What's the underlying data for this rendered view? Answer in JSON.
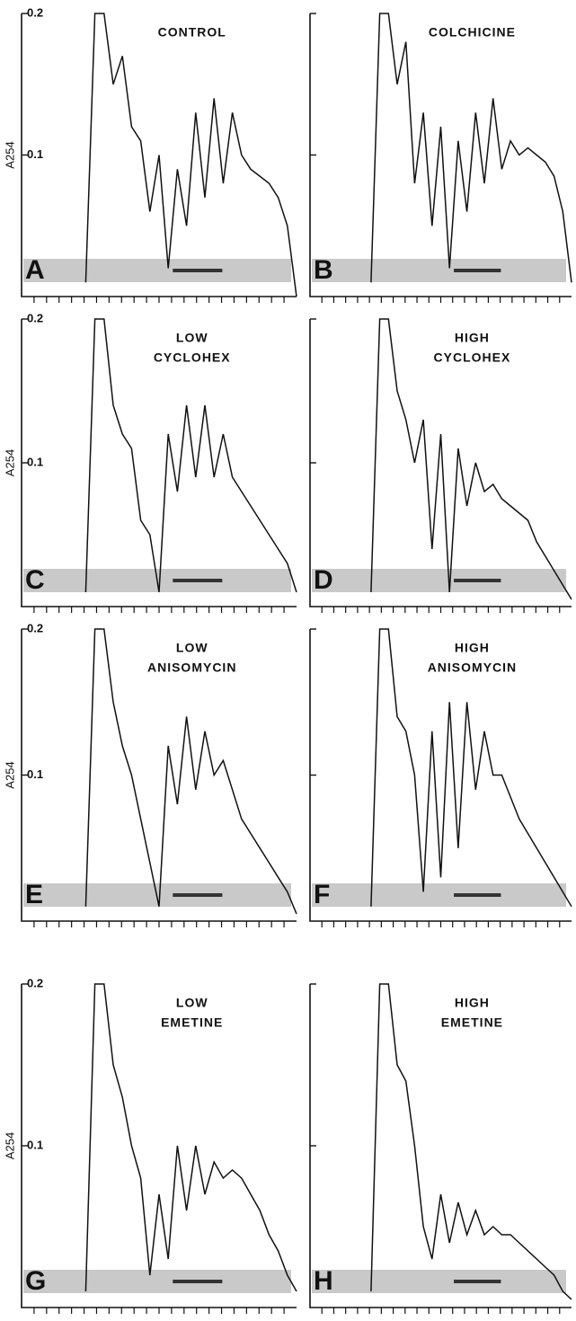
{
  "chart_data": [
    {
      "type": "line",
      "panel": "A",
      "title": [
        "CONTROL"
      ],
      "ylabel": "A254",
      "tick_labels": true,
      "color": "#111111",
      "xlim": [
        0,
        30
      ],
      "ylim": [
        0,
        0.2
      ],
      "yticks": [
        0.1,
        0.2
      ],
      "x": [
        7,
        8,
        9,
        10,
        11,
        12,
        13,
        14,
        15,
        16,
        17,
        18,
        19,
        20,
        21,
        22,
        23,
        24,
        25,
        26,
        27,
        28,
        29,
        30
      ],
      "values": [
        0.01,
        0.2,
        0.2,
        0.15,
        0.17,
        0.12,
        0.11,
        0.06,
        0.1,
        0.02,
        0.09,
        0.05,
        0.13,
        0.07,
        0.14,
        0.08,
        0.13,
        0.1,
        0.09,
        0.085,
        0.08,
        0.07,
        0.05,
        0.0
      ]
    },
    {
      "type": "line",
      "panel": "B",
      "title": [
        "COLCHICINE"
      ],
      "tick_labels": false,
      "color": "#111111",
      "xlim": [
        0,
        30
      ],
      "ylim": [
        0,
        0.2
      ],
      "yticks": [
        0.1,
        0.2
      ],
      "x": [
        7,
        8,
        9,
        10,
        11,
        12,
        13,
        14,
        15,
        16,
        17,
        18,
        19,
        20,
        21,
        22,
        23,
        24,
        25,
        26,
        27,
        28,
        29,
        30
      ],
      "values": [
        0.01,
        0.2,
        0.2,
        0.15,
        0.18,
        0.08,
        0.13,
        0.05,
        0.12,
        0.02,
        0.11,
        0.06,
        0.13,
        0.08,
        0.14,
        0.09,
        0.11,
        0.1,
        0.105,
        0.1,
        0.095,
        0.085,
        0.06,
        0.01
      ]
    },
    {
      "type": "line",
      "panel": "C",
      "title": [
        "LOW",
        "CYCLOHEX"
      ],
      "ylabel": "A254",
      "tick_labels": true,
      "color": "#111111",
      "xlim": [
        0,
        30
      ],
      "ylim": [
        0,
        0.2
      ],
      "yticks": [
        0.1,
        0.2
      ],
      "x": [
        7,
        8,
        9,
        10,
        11,
        12,
        13,
        14,
        15,
        16,
        17,
        18,
        19,
        20,
        21,
        22,
        23,
        24,
        25,
        26,
        27,
        28,
        29,
        30
      ],
      "values": [
        0.01,
        0.2,
        0.2,
        0.14,
        0.12,
        0.11,
        0.06,
        0.05,
        0.01,
        0.12,
        0.08,
        0.14,
        0.09,
        0.14,
        0.09,
        0.12,
        0.09,
        0.08,
        0.07,
        0.06,
        0.05,
        0.04,
        0.03,
        0.01
      ]
    },
    {
      "type": "line",
      "panel": "D",
      "title": [
        "HIGH",
        "CYCLOHEX"
      ],
      "tick_labels": false,
      "color": "#111111",
      "xlim": [
        0,
        30
      ],
      "ylim": [
        0,
        0.2
      ],
      "yticks": [
        0.1,
        0.2
      ],
      "x": [
        7,
        8,
        9,
        10,
        11,
        12,
        13,
        14,
        15,
        16,
        17,
        18,
        19,
        20,
        21,
        22,
        23,
        24,
        25,
        26,
        27,
        28,
        29,
        30
      ],
      "values": [
        0.01,
        0.2,
        0.2,
        0.15,
        0.13,
        0.1,
        0.13,
        0.04,
        0.12,
        0.01,
        0.11,
        0.07,
        0.1,
        0.08,
        0.085,
        0.075,
        0.07,
        0.065,
        0.06,
        0.045,
        0.035,
        0.025,
        0.015,
        0.005
      ]
    },
    {
      "type": "line",
      "panel": "E",
      "title": [
        "LOW",
        "ANISOMYCIN"
      ],
      "ylabel": "A254",
      "tick_labels": true,
      "color": "#111111",
      "xlim": [
        0,
        30
      ],
      "ylim": [
        0,
        0.2
      ],
      "yticks": [
        0.1,
        0.2
      ],
      "x": [
        7,
        8,
        9,
        10,
        11,
        12,
        13,
        14,
        15,
        16,
        17,
        18,
        19,
        20,
        21,
        22,
        23,
        24,
        25,
        26,
        27,
        28,
        29,
        30
      ],
      "values": [
        0.01,
        0.2,
        0.2,
        0.15,
        0.12,
        0.1,
        0.07,
        0.04,
        0.01,
        0.12,
        0.08,
        0.14,
        0.09,
        0.13,
        0.1,
        0.11,
        0.09,
        0.07,
        0.06,
        0.05,
        0.04,
        0.03,
        0.02,
        0.005
      ]
    },
    {
      "type": "line",
      "panel": "F",
      "title": [
        "HIGH",
        "ANISOMYCIN"
      ],
      "tick_labels": false,
      "color": "#111111",
      "xlim": [
        0,
        30
      ],
      "ylim": [
        0,
        0.2
      ],
      "yticks": [
        0.1,
        0.2
      ],
      "x": [
        7,
        8,
        9,
        10,
        11,
        12,
        13,
        14,
        15,
        16,
        17,
        18,
        19,
        20,
        21,
        22,
        23,
        24,
        25,
        26,
        27,
        28,
        29,
        30
      ],
      "values": [
        0.01,
        0.2,
        0.2,
        0.14,
        0.13,
        0.1,
        0.02,
        0.13,
        0.03,
        0.15,
        0.05,
        0.15,
        0.09,
        0.13,
        0.1,
        0.1,
        0.085,
        0.07,
        0.06,
        0.05,
        0.04,
        0.03,
        0.02,
        0.01
      ]
    },
    {
      "type": "line",
      "panel": "G",
      "title": [
        "LOW",
        "EMETINE"
      ],
      "ylabel": "A254",
      "tick_labels": true,
      "color": "#111111",
      "xlim": [
        0,
        30
      ],
      "ylim": [
        0,
        0.2
      ],
      "yticks": [
        0.1,
        0.2
      ],
      "x": [
        7,
        8,
        9,
        10,
        11,
        12,
        13,
        14,
        15,
        16,
        17,
        18,
        19,
        20,
        21,
        22,
        23,
        24,
        25,
        26,
        27,
        28,
        29,
        30
      ],
      "values": [
        0.01,
        0.2,
        0.2,
        0.15,
        0.13,
        0.1,
        0.08,
        0.02,
        0.07,
        0.03,
        0.1,
        0.06,
        0.1,
        0.07,
        0.09,
        0.08,
        0.085,
        0.08,
        0.07,
        0.06,
        0.045,
        0.035,
        0.02,
        0.01
      ]
    },
    {
      "type": "line",
      "panel": "H",
      "title": [
        "HIGH",
        "EMETINE"
      ],
      "tick_labels": false,
      "color": "#111111",
      "xlim": [
        0,
        30
      ],
      "ylim": [
        0,
        0.2
      ],
      "yticks": [
        0.1,
        0.2
      ],
      "x": [
        7,
        8,
        9,
        10,
        11,
        12,
        13,
        14,
        15,
        16,
        17,
        18,
        19,
        20,
        21,
        22,
        23,
        24,
        25,
        26,
        27,
        28,
        29,
        30
      ],
      "values": [
        0.01,
        0.2,
        0.2,
        0.15,
        0.14,
        0.1,
        0.05,
        0.03,
        0.07,
        0.04,
        0.065,
        0.045,
        0.06,
        0.045,
        0.05,
        0.045,
        0.045,
        0.04,
        0.035,
        0.03,
        0.025,
        0.02,
        0.01,
        0.005
      ]
    }
  ]
}
